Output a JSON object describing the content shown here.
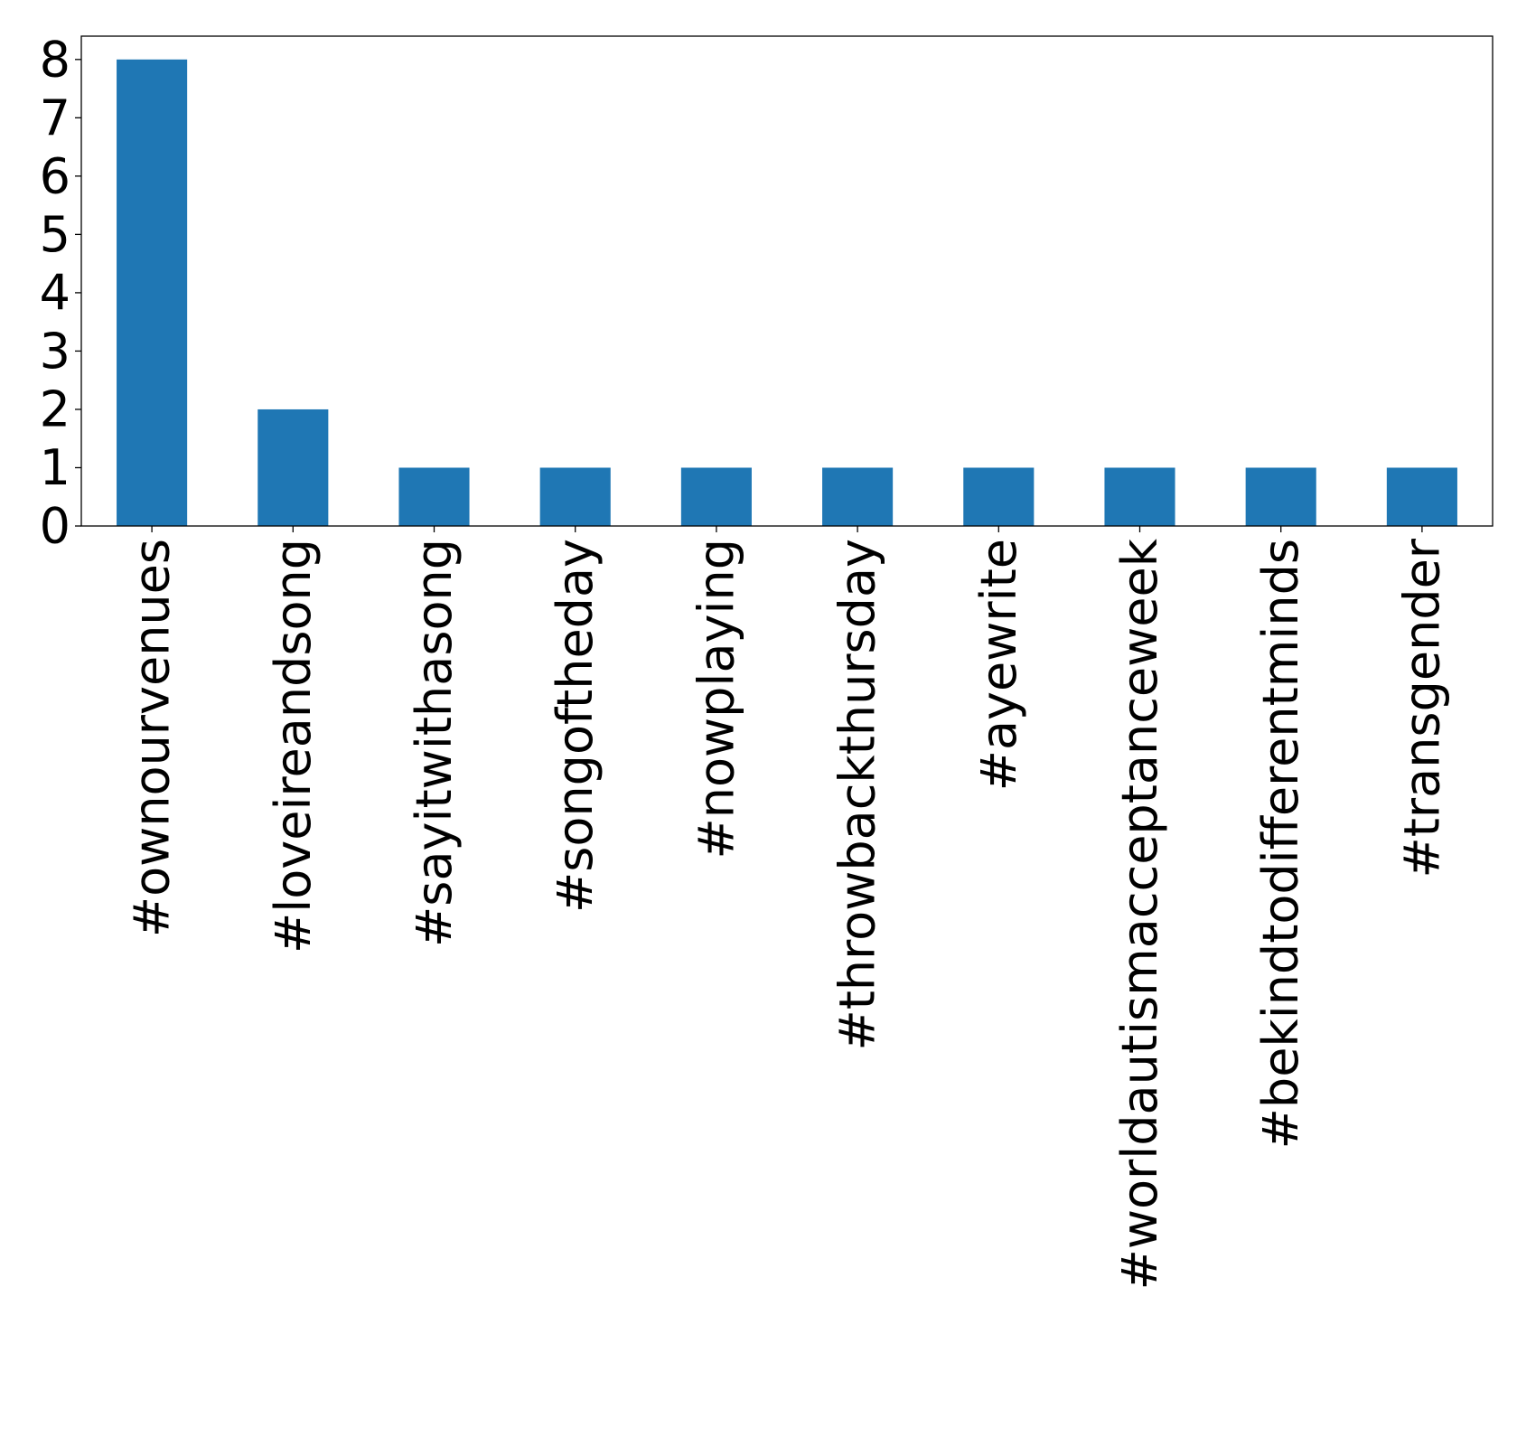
{
  "chart_data": {
    "type": "bar",
    "title": "",
    "xlabel": "",
    "ylabel": "",
    "categories": [
      "#ownourvenues",
      "#loveireandsong",
      "#sayitwithasong",
      "#songoftheday",
      "#nowplaying",
      "#throwbackthursday",
      "#ayewrite",
      "#worldautismacceptanceweek",
      "#bekindtodifferentminds",
      "#transgender"
    ],
    "values": [
      8,
      2,
      1,
      1,
      1,
      1,
      1,
      1,
      1,
      1
    ],
    "ylim": [
      0,
      8.4
    ],
    "yticks": [
      0,
      1,
      2,
      3,
      4,
      5,
      6,
      7,
      8
    ],
    "grid": false,
    "legend": "none",
    "bar_color": "#1f77b4",
    "axis_color": "#000000"
  }
}
